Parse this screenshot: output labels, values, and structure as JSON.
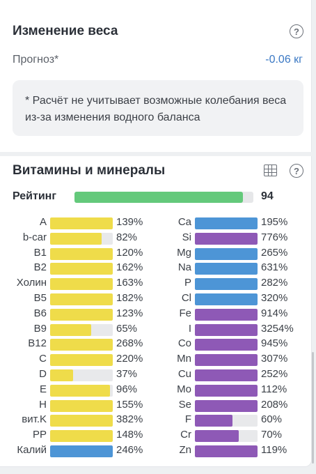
{
  "weight": {
    "title": "Изменение веса",
    "help_icon": "?",
    "forecast_label": "Прогноз*",
    "forecast_value": "-0.06 кг",
    "note": "* Расчёт не учитывает возможные колебания веса из-за изменения водного баланса"
  },
  "vitamins": {
    "title": "Витамины и минералы",
    "help_icon": "?",
    "table_icon": "table-icon",
    "rating_label": "Рейтинг",
    "rating_value": "94",
    "rating_fraction": 0.94,
    "rating_color": "#64c97b"
  },
  "colors": {
    "yellow": "#efdc4a",
    "blue": "#4d95d6",
    "purple": "#8e59b6",
    "track": "#e8e9eb"
  },
  "left_nutrients": [
    {
      "name": "A",
      "pct": "139%",
      "fill": 1.0,
      "color": "yellow"
    },
    {
      "name": "b-car",
      "pct": "82%",
      "fill": 0.82,
      "color": "yellow"
    },
    {
      "name": "B1",
      "pct": "120%",
      "fill": 1.0,
      "color": "yellow"
    },
    {
      "name": "B2",
      "pct": "162%",
      "fill": 1.0,
      "color": "yellow"
    },
    {
      "name": "Холин",
      "pct": "163%",
      "fill": 1.0,
      "color": "yellow"
    },
    {
      "name": "B5",
      "pct": "182%",
      "fill": 1.0,
      "color": "yellow"
    },
    {
      "name": "B6",
      "pct": "123%",
      "fill": 1.0,
      "color": "yellow"
    },
    {
      "name": "B9",
      "pct": "65%",
      "fill": 0.65,
      "color": "yellow"
    },
    {
      "name": "B12",
      "pct": "268%",
      "fill": 1.0,
      "color": "yellow"
    },
    {
      "name": "C",
      "pct": "220%",
      "fill": 1.0,
      "color": "yellow"
    },
    {
      "name": "D",
      "pct": "37%",
      "fill": 0.37,
      "color": "yellow"
    },
    {
      "name": "E",
      "pct": "96%",
      "fill": 0.96,
      "color": "yellow"
    },
    {
      "name": "H",
      "pct": "155%",
      "fill": 1.0,
      "color": "yellow"
    },
    {
      "name": "вит.K",
      "pct": "382%",
      "fill": 1.0,
      "color": "yellow"
    },
    {
      "name": "PP",
      "pct": "148%",
      "fill": 1.0,
      "color": "yellow"
    },
    {
      "name": "Калий",
      "pct": "246%",
      "fill": 1.0,
      "color": "blue"
    }
  ],
  "right_nutrients": [
    {
      "name": "Ca",
      "pct": "195%",
      "fill": 1.0,
      "color": "blue"
    },
    {
      "name": "Si",
      "pct": "776%",
      "fill": 1.0,
      "color": "purple"
    },
    {
      "name": "Mg",
      "pct": "265%",
      "fill": 1.0,
      "color": "blue"
    },
    {
      "name": "Na",
      "pct": "631%",
      "fill": 1.0,
      "color": "blue"
    },
    {
      "name": "P",
      "pct": "282%",
      "fill": 1.0,
      "color": "blue"
    },
    {
      "name": "Cl",
      "pct": "320%",
      "fill": 1.0,
      "color": "blue"
    },
    {
      "name": "Fe",
      "pct": "914%",
      "fill": 1.0,
      "color": "purple"
    },
    {
      "name": "I",
      "pct": "3254%",
      "fill": 1.0,
      "color": "purple"
    },
    {
      "name": "Co",
      "pct": "945%",
      "fill": 1.0,
      "color": "purple"
    },
    {
      "name": "Mn",
      "pct": "307%",
      "fill": 1.0,
      "color": "purple"
    },
    {
      "name": "Cu",
      "pct": "252%",
      "fill": 1.0,
      "color": "purple"
    },
    {
      "name": "Mo",
      "pct": "112%",
      "fill": 1.0,
      "color": "purple"
    },
    {
      "name": "Se",
      "pct": "208%",
      "fill": 1.0,
      "color": "purple"
    },
    {
      "name": "F",
      "pct": "60%",
      "fill": 0.6,
      "color": "purple"
    },
    {
      "name": "Cr",
      "pct": "70%",
      "fill": 0.7,
      "color": "purple"
    },
    {
      "name": "Zn",
      "pct": "119%",
      "fill": 1.0,
      "color": "purple"
    }
  ]
}
